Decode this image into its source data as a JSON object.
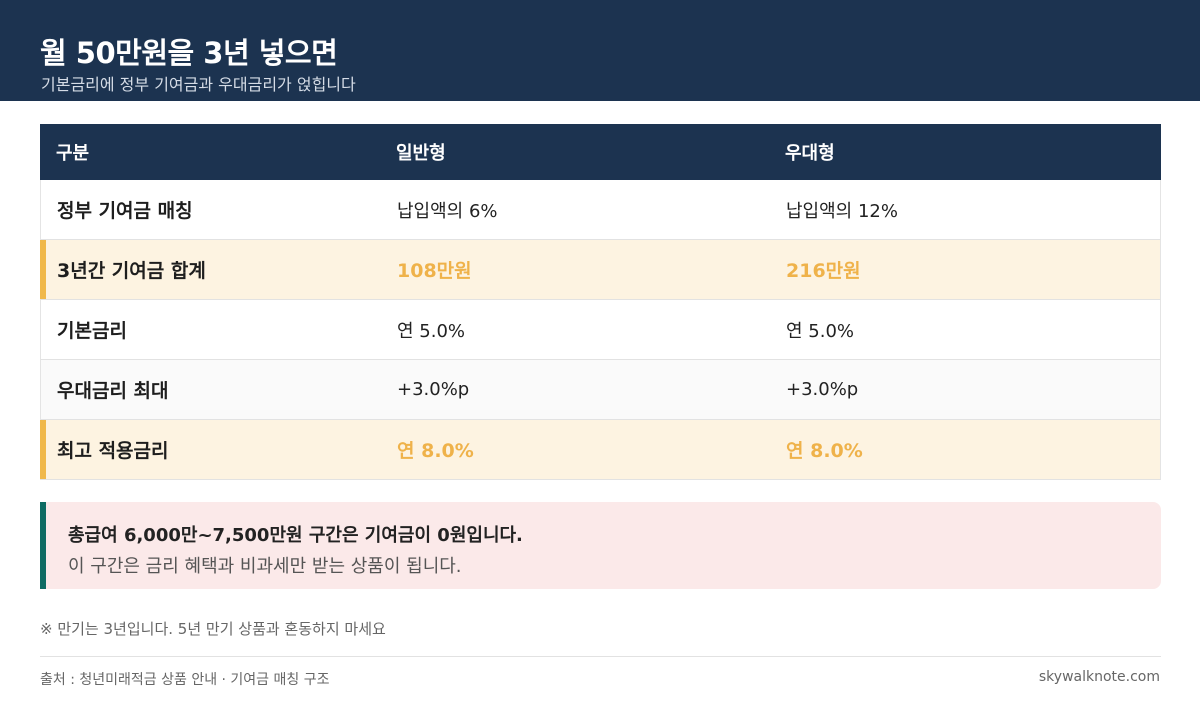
{
  "header": {
    "title": "월 50만원을 3년 넣으면",
    "subtitle": "기본금리에 정부 기여금과 우대금리가 얹힙니다"
  },
  "table": {
    "columns": [
      "구분",
      "일반형",
      "우대형"
    ],
    "rows": [
      {
        "label": "정부 기여금 매칭",
        "general": "납입액의 6%",
        "preferred": "납입액의 12%",
        "highlight": false
      },
      {
        "label": "3년간 기여금 합계",
        "general": "108만원",
        "preferred": "216만원",
        "highlight": true
      },
      {
        "label": "기본금리",
        "general": "연 5.0%",
        "preferred": "연 5.0%",
        "highlight": false
      },
      {
        "label": "우대금리 최대",
        "general": "+3.0%p",
        "preferred": "+3.0%p",
        "highlight": false
      },
      {
        "label": "최고 적용금리",
        "general": "연 8.0%",
        "preferred": "연 8.0%",
        "highlight": true
      }
    ]
  },
  "notice": {
    "strong": "총급여 6,000만~7,500만원 구간은 기여금이 0원입니다.",
    "sub": "이 구간은 금리 혜택과 비과세만 받는 상품이 됩니다."
  },
  "footnote": "※ 만기는 3년입니다. 5년 만기 상품과 혼동하지 마세요",
  "footer": {
    "source": "출처 : 청년미래적금 상품 안내 · 기여금 매칭 구조",
    "site": "skywalknote.com"
  },
  "colors": {
    "navy": "#1c3350",
    "highlight_bg": "#fdf3e1",
    "highlight_accent": "#f0b84a",
    "notice_bg": "#fbe9e9",
    "notice_accent": "#0e6b63"
  }
}
